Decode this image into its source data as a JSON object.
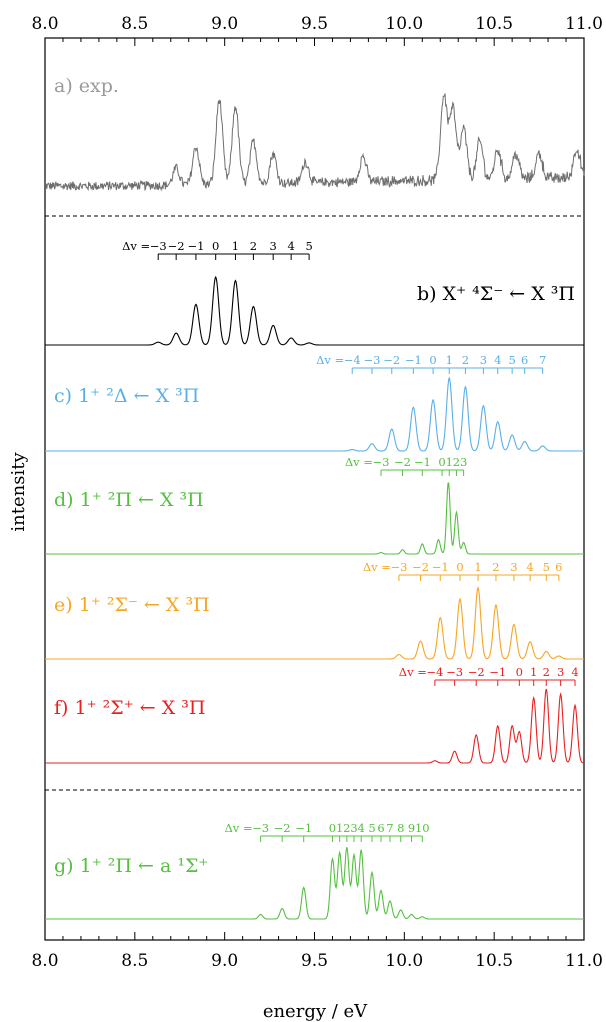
{
  "chart_data": {
    "type": "line",
    "xlabel": "energy / eV",
    "ylabel": "intensity",
    "xlim": [
      8.0,
      11.0
    ],
    "x_ticks": [
      "8.0",
      "8.5",
      "9.0",
      "9.5",
      "10.0",
      "10.5",
      "11.0"
    ],
    "panels": [
      {
        "id": "a",
        "label": "a) exp.",
        "color": "#9a9a9a",
        "line_color": "#6e6e6e",
        "kind": "experimental",
        "peaks": [
          [
            8.73,
            0.2
          ],
          [
            8.84,
            0.45
          ],
          [
            8.97,
            1.0
          ],
          [
            9.06,
            0.92
          ],
          [
            9.16,
            0.5
          ],
          [
            9.27,
            0.35
          ],
          [
            9.45,
            0.25
          ],
          [
            9.77,
            0.3
          ],
          [
            10.22,
            1.0
          ],
          [
            10.27,
            0.85
          ],
          [
            10.33,
            0.6
          ],
          [
            10.42,
            0.45
          ],
          [
            10.52,
            0.35
          ],
          [
            10.62,
            0.3
          ],
          [
            10.75,
            0.3
          ],
          [
            10.96,
            0.35
          ]
        ]
      },
      {
        "id": "b",
        "label": "b) X⁺ ⁴Σ⁻ ← X ³Π",
        "color": "#000000",
        "kind": "progression",
        "peaks": [
          [
            8.63,
            0.04
          ],
          [
            8.73,
            0.17
          ],
          [
            8.84,
            0.58
          ],
          [
            8.95,
            0.97
          ],
          [
            9.06,
            0.92
          ],
          [
            9.16,
            0.55
          ],
          [
            9.27,
            0.28
          ],
          [
            9.37,
            0.1
          ],
          [
            9.47,
            0.03
          ]
        ],
        "progression": {
          "label_prefix": "Δv =",
          "values": [
            "−3",
            "−2",
            "−1",
            "0",
            "1",
            "2",
            "3",
            "4",
            "5"
          ],
          "x": [
            8.63,
            8.73,
            8.84,
            8.95,
            9.06,
            9.16,
            9.27,
            9.37,
            9.47
          ]
        }
      },
      {
        "id": "c",
        "label": "c) 1⁺ ²Δ ← X ³Π",
        "color": "#5aafe6",
        "kind": "progression",
        "peaks": [
          [
            9.71,
            0.02
          ],
          [
            9.82,
            0.1
          ],
          [
            9.93,
            0.3
          ],
          [
            10.05,
            0.6
          ],
          [
            10.16,
            0.7
          ],
          [
            10.25,
            1.0
          ],
          [
            10.34,
            0.88
          ],
          [
            10.44,
            0.62
          ],
          [
            10.52,
            0.4
          ],
          [
            10.6,
            0.22
          ],
          [
            10.67,
            0.13
          ],
          [
            10.77,
            0.07
          ]
        ],
        "progression": {
          "label_prefix": "Δv =",
          "values": [
            "−4",
            "−3",
            "−2",
            "−1",
            "0",
            "1",
            "2",
            "3",
            "4",
            "5",
            "6",
            "7"
          ],
          "x": [
            9.71,
            9.82,
            9.93,
            10.05,
            10.16,
            10.25,
            10.34,
            10.44,
            10.52,
            10.6,
            10.67,
            10.77
          ]
        }
      },
      {
        "id": "d",
        "label": "d) 1⁺ ²Π ← X ³Π",
        "color": "#55c040",
        "kind": "progression",
        "peaks": [
          [
            9.87,
            0.02
          ],
          [
            9.99,
            0.06
          ],
          [
            10.1,
            0.14
          ],
          [
            10.19,
            0.2
          ],
          [
            10.245,
            1.0
          ],
          [
            10.29,
            0.58
          ],
          [
            10.33,
            0.16
          ]
        ],
        "progression": {
          "label_prefix": "Δv =",
          "values": [
            "−3",
            "−2",
            "−1",
            "0",
            "1",
            "2",
            "3"
          ],
          "x": [
            9.87,
            9.99,
            10.1,
            10.21,
            10.25,
            10.29,
            10.33
          ]
        }
      },
      {
        "id": "e",
        "label": "e) 1⁺ ²Σ⁻ ← X ³Π",
        "color": "#f5a623",
        "kind": "progression",
        "peaks": [
          [
            9.97,
            0.06
          ],
          [
            10.09,
            0.24
          ],
          [
            10.2,
            0.55
          ],
          [
            10.31,
            0.8
          ],
          [
            10.41,
            0.95
          ],
          [
            10.51,
            0.72
          ],
          [
            10.61,
            0.46
          ],
          [
            10.7,
            0.23
          ],
          [
            10.79,
            0.1
          ],
          [
            10.86,
            0.04
          ]
        ],
        "progression": {
          "label_prefix": "Δv =",
          "values": [
            "−3",
            "−2",
            "−1",
            "0",
            "1",
            "2",
            "3",
            "4",
            "5",
            "6"
          ],
          "x": [
            9.97,
            10.09,
            10.2,
            10.31,
            10.41,
            10.51,
            10.61,
            10.7,
            10.79,
            10.86
          ]
        }
      },
      {
        "id": "f",
        "label": "f) 1⁺ ²Σ⁺ ← X ³Π",
        "color": "#e82020",
        "kind": "progression",
        "peaks": [
          [
            10.17,
            0.03
          ],
          [
            10.28,
            0.16
          ],
          [
            10.4,
            0.38
          ],
          [
            10.52,
            0.5
          ],
          [
            10.6,
            0.5
          ],
          [
            10.64,
            0.42
          ],
          [
            10.72,
            0.88
          ],
          [
            10.79,
            1.0
          ],
          [
            10.87,
            0.93
          ],
          [
            10.95,
            0.78
          ]
        ],
        "progression": {
          "label_prefix": "Δv =",
          "values": [
            "−4",
            "−3",
            "−2",
            "−1",
            "0",
            "1",
            "2",
            "3",
            "4"
          ],
          "x": [
            10.17,
            10.28,
            10.4,
            10.52,
            10.64,
            10.72,
            10.79,
            10.87,
            10.95
          ]
        }
      },
      {
        "id": "g",
        "label": "g) 1⁺ ²Π ← a ¹Σ⁺",
        "color": "#55c040",
        "kind": "progression",
        "peaks": [
          [
            9.2,
            0.06
          ],
          [
            9.32,
            0.14
          ],
          [
            9.44,
            0.42
          ],
          [
            9.6,
            0.8
          ],
          [
            9.64,
            0.88
          ],
          [
            9.68,
            0.95
          ],
          [
            9.72,
            0.85
          ],
          [
            9.76,
            0.92
          ],
          [
            9.82,
            0.62
          ],
          [
            9.87,
            0.38
          ],
          [
            9.92,
            0.24
          ],
          [
            9.98,
            0.12
          ],
          [
            10.04,
            0.06
          ],
          [
            10.1,
            0.03
          ]
        ],
        "progression": {
          "label_prefix": "Δv =",
          "values": [
            "−3",
            "−2",
            "−1",
            "0",
            "1",
            "2",
            "3",
            "4",
            "5",
            "6",
            "7",
            "8",
            "9",
            "10"
          ],
          "x": [
            9.2,
            9.32,
            9.44,
            9.6,
            9.64,
            9.68,
            9.72,
            9.76,
            9.82,
            9.87,
            9.92,
            9.98,
            10.04,
            10.1
          ]
        }
      }
    ]
  }
}
